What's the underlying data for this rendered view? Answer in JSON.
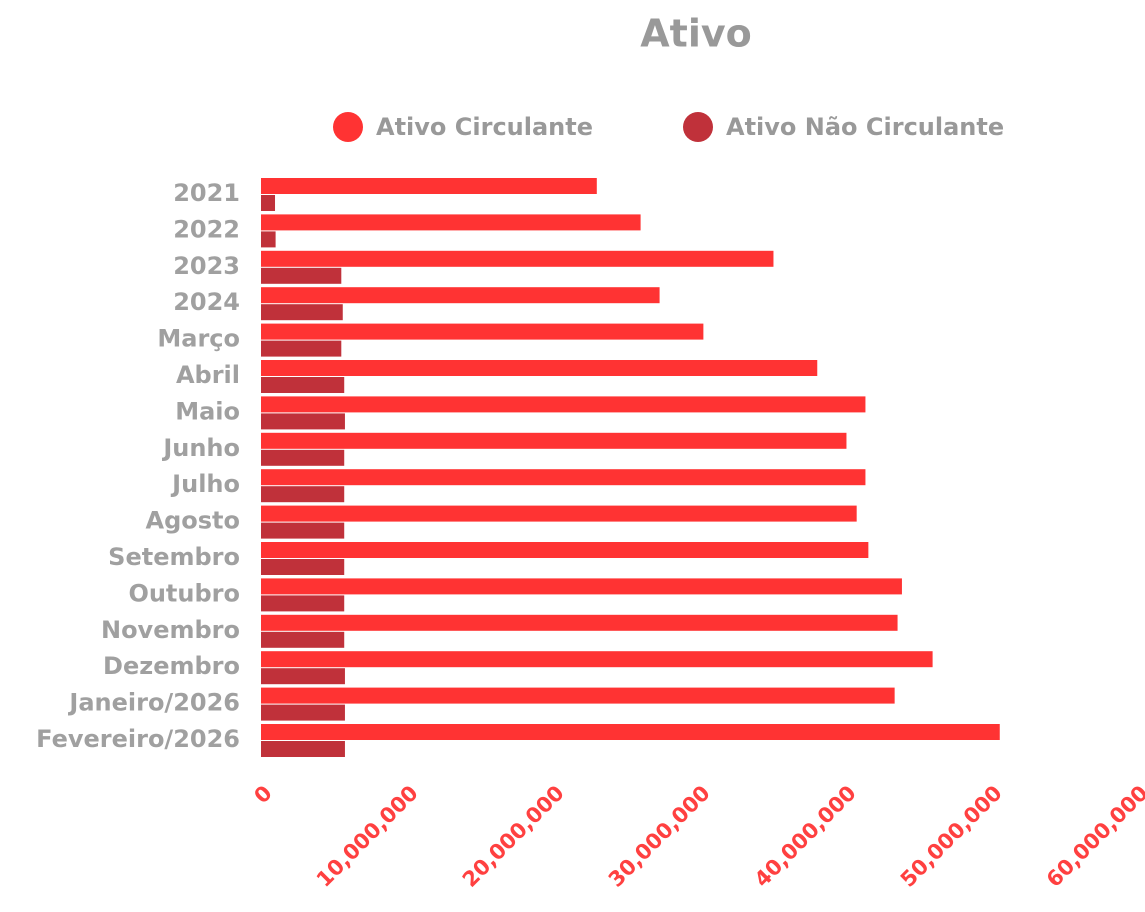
{
  "chart_data": {
    "type": "barh",
    "title": "Ativo",
    "categories": [
      "2021",
      "2022",
      "2023",
      "2024",
      "Março",
      "Abril",
      "Maio",
      "Junho",
      "Julho",
      "Agosto",
      "Setembro",
      "Outubro",
      "Novembro",
      "Dezembro",
      "Janeiro/2026",
      "Fevereiro/2026"
    ],
    "series": [
      {
        "name": "Ativo Circulante",
        "color": "#ff3333",
        "values": [
          23000000,
          26000000,
          35100000,
          27300000,
          30300000,
          38100000,
          41400000,
          40100000,
          41400000,
          40800000,
          41600000,
          43900000,
          43600000,
          46000000,
          43400000,
          50600000
        ]
      },
      {
        "name": "Ativo Não Circulante",
        "color": "#c0313a",
        "values": [
          960000,
          1000000,
          5500000,
          5600000,
          5500000,
          5700000,
          5750000,
          5700000,
          5700000,
          5700000,
          5700000,
          5700000,
          5700000,
          5750000,
          5750000,
          5750000
        ]
      }
    ],
    "xlim": [
      0,
      60000000
    ],
    "xticks": [
      0,
      {
        "value": 10000000,
        "label": "10,000,000"
      },
      {
        "value": 20000000,
        "label": "20,000,000"
      },
      {
        "value": 30000000,
        "label": "30,000,000"
      },
      {
        "value": 40000000,
        "label": "40,000,000"
      },
      {
        "value": 50000000,
        "label": "50,000,000"
      },
      {
        "value": 60000000,
        "label": "60,000,000"
      }
    ],
    "grid": false,
    "legend": "top"
  }
}
